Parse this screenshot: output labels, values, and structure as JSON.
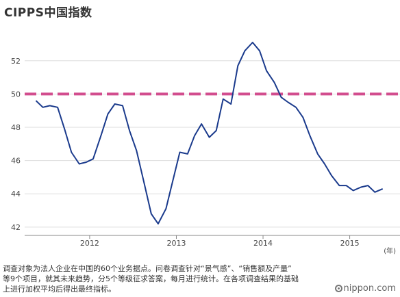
{
  "title": "CIPPS中国指数",
  "unit": "(年)",
  "footnote": [
    "调查对象为法人企业在中国的60个业务据点。问卷调查针对“景气感”、“销售额及产量”",
    "等9个项目，就其未来趋势，分5个等级征求答案，每月进行统计。在各项调查结果的基础",
    "上进行加权平均后得出最终指标。"
  ],
  "brand": "nippon.com",
  "colors": {
    "series": "#1a3a8c",
    "reference": "#d24d8e",
    "grid": "#dddddd",
    "axis": "#888888"
  },
  "chart_data": {
    "type": "line",
    "title": "CIPPS中国指数",
    "xlabel": "(年)",
    "ylabel": "",
    "ylim": [
      41.5,
      54.5
    ],
    "yticks": [
      42,
      44,
      46,
      48,
      50,
      52
    ],
    "xlim": [
      2011.25,
      2015.58
    ],
    "xticks": [
      2012,
      2013,
      2014,
      2015
    ],
    "grid": "horizontal",
    "reference_line": {
      "y": 50,
      "style": "dashed"
    },
    "series": [
      {
        "x": [
          2011.38,
          2011.46,
          2011.54,
          2011.63,
          2011.71,
          2011.79,
          2011.88,
          2011.96,
          2012.04,
          2012.13,
          2012.21,
          2012.29,
          2012.38,
          2012.46,
          2012.54,
          2012.63,
          2012.71,
          2012.79,
          2012.88,
          2012.96,
          2013.04,
          2013.13,
          2013.21,
          2013.29,
          2013.38,
          2013.46,
          2013.54,
          2013.63,
          2013.71,
          2013.79,
          2013.88,
          2013.96,
          2014.04,
          2014.13,
          2014.21,
          2014.29,
          2014.38,
          2014.46,
          2014.54,
          2014.63,
          2014.71,
          2014.79,
          2014.88,
          2014.96,
          2015.04,
          2015.13,
          2015.21,
          2015.29,
          2015.38
        ],
        "values": [
          49.6,
          49.2,
          49.3,
          49.2,
          47.9,
          46.5,
          45.8,
          45.9,
          46.1,
          47.5,
          48.8,
          49.4,
          49.3,
          47.8,
          46.6,
          44.6,
          42.8,
          42.2,
          43.1,
          44.8,
          46.5,
          46.4,
          47.5,
          48.2,
          47.4,
          47.8,
          49.7,
          49.4,
          51.7,
          52.6,
          53.1,
          52.6,
          51.4,
          50.7,
          49.8,
          49.5,
          49.2,
          48.6,
          47.5,
          46.4,
          45.8,
          45.1,
          44.5,
          44.5,
          44.2,
          44.4,
          44.5,
          44.1,
          44.3
        ]
      }
    ]
  }
}
